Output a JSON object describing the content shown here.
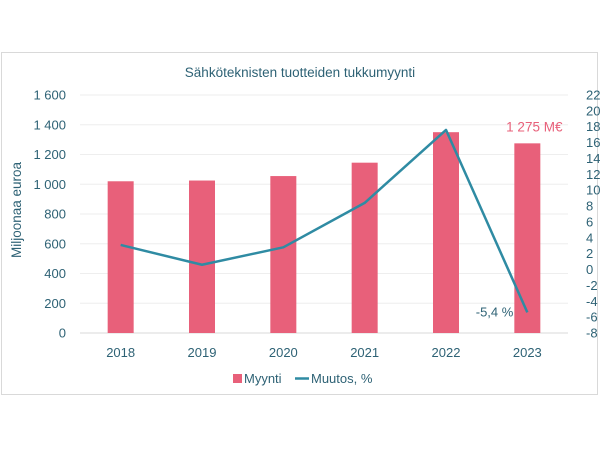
{
  "chart_data": {
    "type": "bar+line",
    "title": "Sähköteknisten tuotteiden tukkumyynti",
    "ylabel": "Miljoonaa euroa",
    "y2label": "",
    "categories": [
      "2018",
      "2019",
      "2020",
      "2021",
      "2022",
      "2023"
    ],
    "ylim": [
      0,
      1600
    ],
    "yticks": [
      "0",
      "200",
      "400",
      "600",
      "800",
      "1 000",
      "1 200",
      "1 400",
      "1 600"
    ],
    "y2lim": [
      -8,
      22
    ],
    "y2ticks": [
      "-8",
      "-6",
      "-4",
      "-2",
      "0",
      "2",
      "4",
      "6",
      "8",
      "10",
      "12",
      "14",
      "16",
      "18",
      "20",
      "22"
    ],
    "series": [
      {
        "name": "Myynti",
        "type": "bar",
        "axis": "left",
        "values": [
          1020,
          1025,
          1055,
          1145,
          1350,
          1275
        ]
      },
      {
        "name": "Muutos, %",
        "type": "line",
        "axis": "right",
        "values": [
          3.1,
          0.6,
          2.8,
          8.4,
          17.6,
          -5.4
        ]
      }
    ],
    "annotations": [
      {
        "text": "1 275 M€",
        "target": "Myynti-2023"
      },
      {
        "text": "-5,4 %",
        "target": "Muutos-2023"
      }
    ],
    "legend": "bottom",
    "grid": true,
    "colors": {
      "bar": "#e8607a",
      "line": "#2f8ba3",
      "text": "#2e6275",
      "grid": "#eeeeee",
      "annotation_bar": "#e8607a"
    }
  }
}
